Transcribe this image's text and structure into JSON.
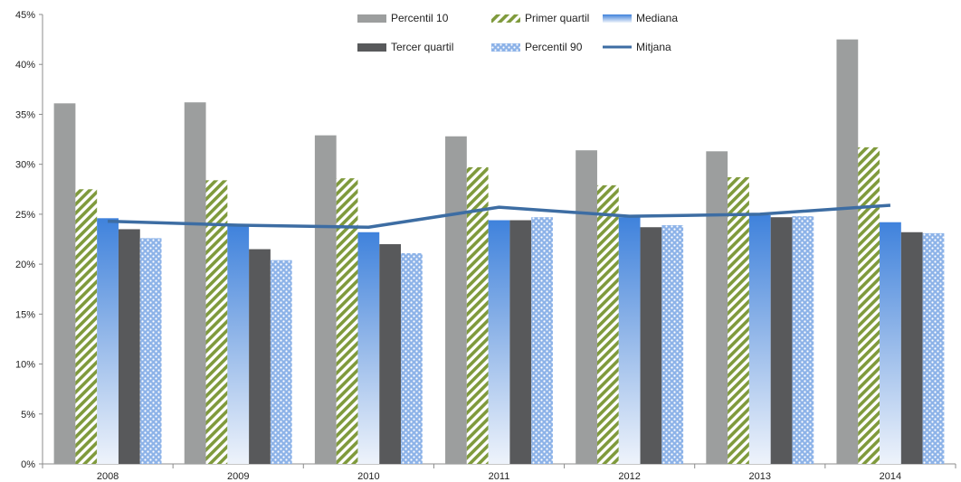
{
  "chart_data": {
    "type": "bar",
    "title": "",
    "xlabel": "",
    "ylabel": "",
    "categories": [
      "2008",
      "2009",
      "2010",
      "2011",
      "2012",
      "2013",
      "2014"
    ],
    "ylim": [
      0,
      45
    ],
    "yticks": [
      0,
      5,
      10,
      15,
      20,
      25,
      30,
      35,
      40,
      45
    ],
    "ytick_labels": [
      "0%",
      "5%",
      "10%",
      "15%",
      "20%",
      "25%",
      "30%",
      "35%",
      "40%",
      "45%"
    ],
    "grid": false,
    "legend_position": "top",
    "series": [
      {
        "name": "Percentil 10",
        "type": "bar",
        "color": "#9c9e9e",
        "values": [
          36.1,
          36.2,
          32.9,
          32.8,
          31.4,
          31.3,
          42.5
        ]
      },
      {
        "name": "Primer quartil",
        "type": "bar",
        "color": "#7f9a3c",
        "pattern": "diagonal-stripes",
        "values": [
          27.5,
          28.4,
          28.6,
          29.7,
          27.9,
          28.7,
          31.7
        ]
      },
      {
        "name": "Mediana",
        "type": "bar",
        "color": "#4a89dc",
        "pattern": "vertical-gradient",
        "values": [
          24.6,
          23.9,
          23.2,
          24.4,
          24.7,
          24.9,
          24.2
        ]
      },
      {
        "name": "Tercer quartil",
        "type": "bar",
        "color": "#58595b",
        "values": [
          23.5,
          21.5,
          22.0,
          24.4,
          23.7,
          24.7,
          23.2
        ]
      },
      {
        "name": "Percentil 90",
        "type": "bar",
        "color": "#8db3e8",
        "pattern": "dots",
        "values": [
          22.6,
          20.4,
          21.1,
          24.7,
          23.9,
          24.8,
          23.1
        ]
      },
      {
        "name": "Mitjana",
        "type": "line",
        "color": "#3d6da3",
        "values": [
          24.3,
          23.9,
          23.7,
          25.7,
          24.8,
          25.0,
          25.9
        ]
      }
    ]
  }
}
